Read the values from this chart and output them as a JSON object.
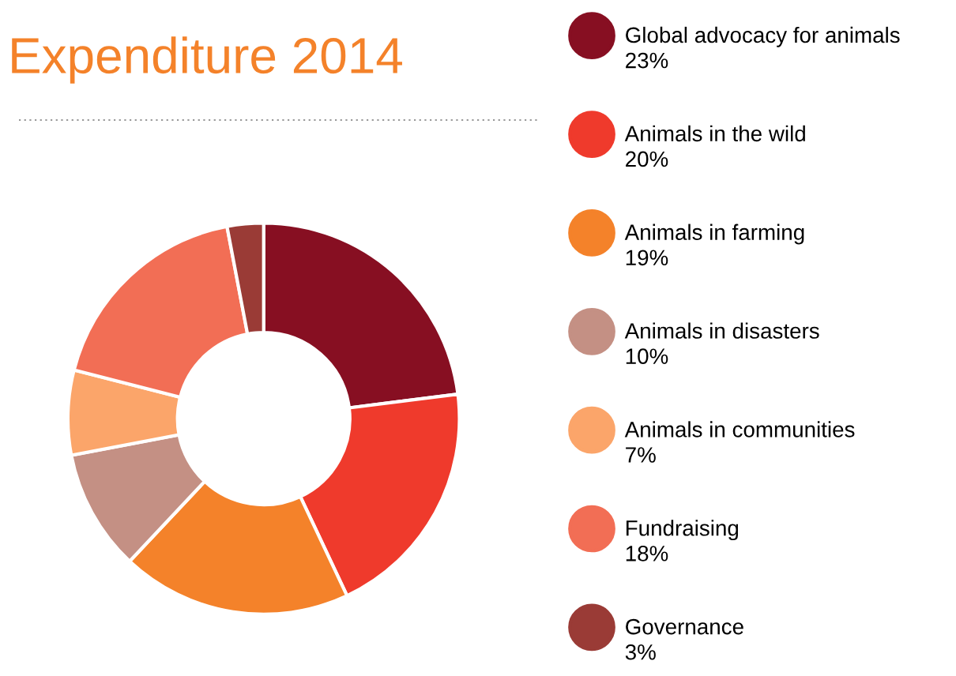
{
  "chart_data": {
    "type": "donut",
    "title": "Expenditure 2014",
    "categories": [
      "Global advocacy for animals",
      "Animals in the wild",
      "Animals in farming",
      "Animals in disasters",
      "Animals in communities",
      "Fundraising",
      "Governance"
    ],
    "values": [
      23,
      20,
      19,
      10,
      7,
      18,
      3
    ],
    "colors": [
      "#870f22",
      "#ef3a2c",
      "#f4822a",
      "#c49084",
      "#fba56a",
      "#f26e55",
      "#9a3b36"
    ],
    "value_labels": [
      "23%",
      "20%",
      "19%",
      "10%",
      "7%",
      "18%",
      "3%"
    ],
    "legend": "right"
  }
}
